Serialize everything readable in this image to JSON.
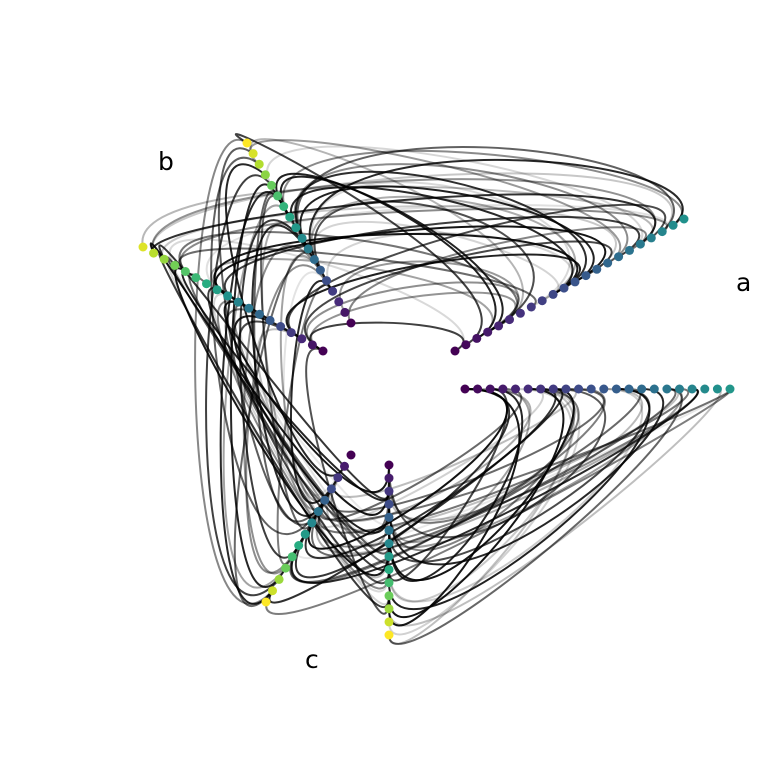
{
  "diagram": {
    "type": "hive-plot",
    "background": "#ffffff",
    "edge_color": "#000000",
    "axes": [
      {
        "id": "a",
        "label": "a",
        "node_count": 22,
        "angle_deg": 0
      },
      {
        "id": "b",
        "label": "b",
        "node_count": 18,
        "angle_deg": 120
      },
      {
        "id": "c",
        "label": "c",
        "node_count": 14,
        "angle_deg": 240
      }
    ],
    "colormap": {
      "name": "viridis",
      "stops": [
        "#440154",
        "#472d7b",
        "#3b528b",
        "#2c728e",
        "#21918c",
        "#28ae80",
        "#5ec962",
        "#addc30",
        "#fde725"
      ]
    },
    "edge_count": 120
  }
}
